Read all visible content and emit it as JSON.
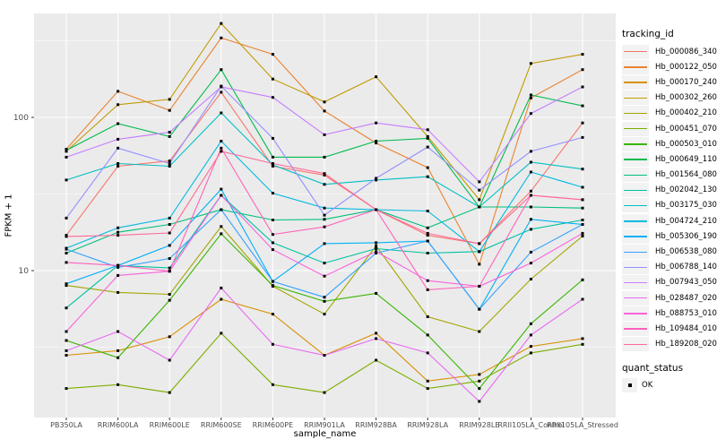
{
  "chart_data": {
    "type": "line",
    "title": "",
    "xlabel": "sample_name",
    "ylabel": "FPKM + 1",
    "y_scale": "log10",
    "ylim": [
      1.1,
      480
    ],
    "y_ticks": [
      100,
      10
    ],
    "y_minor_gridlines": [
      316.2,
      31.62,
      3.162
    ],
    "grid": "on",
    "panel_bg": "#EBEBEB",
    "grid_color": "#FFFFFF",
    "point_marker": "black-square",
    "quant_status_all_points": "OK",
    "legend_position": "right",
    "categories": [
      "PB350LA",
      "RRIM600LA",
      "RRIM600LE",
      "RRIM600SE",
      "RRIM600PE",
      "RRIM901LA",
      "RRIM928BA",
      "RRIM928LA",
      "RRIM928LE",
      "RRII105LA_Control",
      "RRII105LA_Stressed"
    ],
    "series": [
      {
        "name": "Hb_000086_340",
        "color": "#F8766D",
        "values": [
          17,
          48,
          52,
          146,
          48,
          42,
          25,
          17,
          15,
          33,
          92
        ]
      },
      {
        "name": "Hb_000122_050",
        "color": "#EA8331",
        "values": [
          62,
          148,
          111,
          330,
          258,
          110,
          68,
          47,
          11,
          134,
          205
        ]
      },
      {
        "name": "Hb_000170_240",
        "color": "#D89000",
        "values": [
          2.8,
          3,
          3.7,
          6.5,
          5.2,
          2.8,
          3.9,
          1.9,
          2.1,
          3.2,
          3.6
        ]
      },
      {
        "name": "Hb_000302_260",
        "color": "#C09B00",
        "values": [
          60,
          121,
          131,
          410,
          178,
          126,
          184,
          75,
          29,
          225,
          258
        ]
      },
      {
        "name": "Hb_000402_210",
        "color": "#A3A500",
        "values": [
          8,
          7.2,
          7,
          19.4,
          7.9,
          5.2,
          14.5,
          5,
          4,
          8.8,
          16.8
        ]
      },
      {
        "name": "Hb_000451_070",
        "color": "#7CAE00",
        "values": [
          1.7,
          1.8,
          1.6,
          3.9,
          1.8,
          1.6,
          2.6,
          1.7,
          1.9,
          2.9,
          3.3
        ]
      },
      {
        "name": "Hb_000503_010",
        "color": "#39B600",
        "values": [
          3.5,
          2.7,
          6.4,
          17.4,
          8,
          6.3,
          7.1,
          3.8,
          1.7,
          4.5,
          8.7
        ]
      },
      {
        "name": "Hb_000649_110",
        "color": "#00BB4E",
        "values": [
          61,
          91,
          75,
          205,
          55,
          55,
          70,
          73,
          26,
          140,
          119
        ]
      },
      {
        "name": "Hb_001564_080",
        "color": "#00BF7D",
        "values": [
          13,
          17.8,
          20,
          25,
          21.4,
          21.6,
          25,
          19,
          26,
          26,
          25.6
        ]
      },
      {
        "name": "Hb_002042_130",
        "color": "#00C1A3",
        "values": [
          5.7,
          10.8,
          10.4,
          31,
          15.2,
          11.2,
          13.9,
          13,
          13.3,
          18.6,
          21.4
        ]
      },
      {
        "name": "Hb_003175_030",
        "color": "#00BFC4",
        "values": [
          39,
          50,
          48,
          107,
          49,
          36.5,
          39,
          41,
          26,
          51,
          46
        ]
      },
      {
        "name": "Hb_004724_210",
        "color": "#00BAE0",
        "values": [
          14,
          19,
          22,
          70,
          32,
          25.6,
          25,
          24.5,
          13.3,
          44,
          35
        ]
      },
      {
        "name": "Hb_005306_190",
        "color": "#00B0F6",
        "values": [
          8.2,
          10.8,
          14.6,
          34,
          8.5,
          15,
          15.2,
          15.6,
          5.6,
          21.6,
          20
        ]
      },
      {
        "name": "Hb_006538_080",
        "color": "#35A2FF",
        "values": [
          13.8,
          10.5,
          12,
          25,
          8.5,
          6.7,
          13,
          15.6,
          5.6,
          13.2,
          20
        ]
      },
      {
        "name": "Hb_006788_140",
        "color": "#9590FF",
        "values": [
          22,
          63,
          50,
          160,
          73,
          23,
          40,
          64,
          33.5,
          60,
          74
        ]
      },
      {
        "name": "Hb_007943_050",
        "color": "#C77CFF",
        "values": [
          55,
          72,
          80,
          158,
          135,
          77,
          92,
          83,
          38,
          106,
          158
        ]
      },
      {
        "name": "Hb_028487_020",
        "color": "#E76BF3",
        "values": [
          3,
          4,
          2.6,
          7.7,
          3.3,
          2.8,
          3.6,
          2.9,
          1.4,
          3.8,
          6.5
        ]
      },
      {
        "name": "Hb_088753_010",
        "color": "#FA62DB",
        "values": [
          4,
          9.3,
          9.9,
          31,
          13.7,
          9.2,
          13.3,
          8.6,
          7.9,
          11.2,
          17.5
        ]
      },
      {
        "name": "Hb_109484_010",
        "color": "#FF62BC",
        "values": [
          11.3,
          10.8,
          9.9,
          63,
          17.2,
          19.3,
          25,
          7.5,
          7.9,
          31,
          29
        ]
      },
      {
        "name": "Hb_189208_020",
        "color": "#FF6A98",
        "values": [
          16.7,
          17,
          17.6,
          60,
          50,
          43,
          25,
          17.5,
          15,
          31,
          29
        ]
      }
    ]
  },
  "legend": {
    "tracking_title": "tracking_id",
    "quant_title": "quant_status",
    "quant_value": "OK"
  }
}
